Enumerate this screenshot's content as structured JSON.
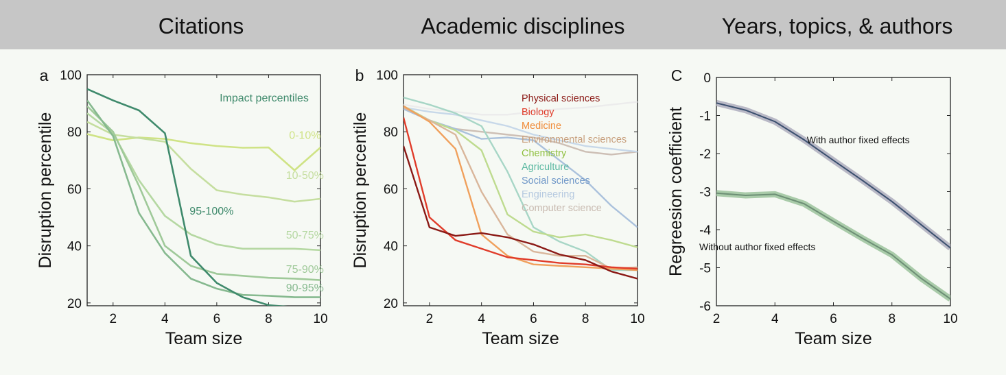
{
  "headers": [
    "Citations",
    "Academic disciplines",
    "Years, topics, & authors"
  ],
  "chart_data": [
    {
      "type": "line",
      "panel_label": "a",
      "xlabel": "Team size",
      "ylabel": "Disruption percentile",
      "xlim": [
        1,
        10
      ],
      "ylim": [
        19,
        100
      ],
      "xticks": [
        2,
        4,
        6,
        8,
        10
      ],
      "yticks": [
        20,
        40,
        60,
        80,
        100
      ],
      "legend_title": "Impact percentiles",
      "legend_title_color": "#3f8a6c",
      "x": [
        1,
        2,
        3,
        4,
        5,
        6,
        7,
        8,
        9,
        10
      ],
      "series": [
        {
          "name": "0-10%",
          "color": "#cfe385",
          "label_pos": [
            9.4,
            77.5
          ],
          "values": [
            79.2,
            77.0,
            78.0,
            77.5,
            76.0,
            75.0,
            74.4,
            74.5,
            66.5,
            74.5
          ]
        },
        {
          "name": "10-50%",
          "color": "#c5de9f",
          "label_pos": [
            9.4,
            63.5
          ],
          "values": [
            83.5,
            79.0,
            77.8,
            76.5,
            67.0,
            59.5,
            58.0,
            57.0,
            55.5,
            56.5
          ]
        },
        {
          "name": "50-75%",
          "color": "#b5d8a2",
          "label_pos": [
            9.4,
            42.5
          ],
          "values": [
            86.5,
            79.5,
            63.0,
            50.5,
            44.0,
            40.5,
            39.0,
            39.0,
            39.0,
            38.5
          ]
        },
        {
          "name": "75-90%",
          "color": "#9fc999",
          "label_pos": [
            9.4,
            30.5
          ],
          "values": [
            89.0,
            80.0,
            61.0,
            40.0,
            33.0,
            30.2,
            29.5,
            28.8,
            28.5,
            28.0
          ]
        },
        {
          "name": "90-95%",
          "color": "#86b98f",
          "label_pos": [
            9.4,
            24.0
          ],
          "values": [
            91.0,
            78.5,
            51.5,
            37.5,
            28.5,
            25.0,
            22.8,
            22.5,
            22.0,
            22.0
          ]
        },
        {
          "name": "95-100%",
          "color": "#3f8a6c",
          "label_pos": [
            5.8,
            51.0
          ],
          "values": [
            95.0,
            91.0,
            87.5,
            79.5,
            36.5,
            27.0,
            22.0,
            19.2,
            18.5,
            18.0
          ]
        }
      ]
    },
    {
      "type": "line",
      "panel_label": "b",
      "xlabel": "Team size",
      "ylabel": "Disruption percentile",
      "xlim": [
        1,
        10
      ],
      "ylim": [
        19,
        100
      ],
      "xticks": [
        2,
        4,
        6,
        8,
        10
      ],
      "yticks": [
        20,
        40,
        60,
        80,
        100
      ],
      "x": [
        1,
        2,
        3,
        4,
        5,
        6,
        7,
        8,
        9,
        10
      ],
      "series": [
        {
          "name": "",
          "color": "#ececec",
          "values": [
            89.5,
            88.0,
            87.0,
            86.0,
            86.0,
            87.0,
            88.0,
            88.5,
            89.5,
            90.5
          ]
        },
        {
          "name": "Computer science",
          "color": "#cdbfb5",
          "values": [
            89.0,
            84.0,
            81.0,
            80.0,
            79.0,
            78.0,
            76.0,
            73.0,
            72.0,
            73.0
          ]
        },
        {
          "name": "Engineering",
          "color": "#c7d8e9",
          "values": [
            88.5,
            87.0,
            86.0,
            84.0,
            82.0,
            79.0,
            77.0,
            75.0,
            74.0,
            73.0
          ]
        },
        {
          "name": "Social sciences",
          "color": "#aac1dc",
          "values": [
            88.0,
            84.0,
            81.0,
            77.5,
            78.0,
            77.0,
            70.0,
            63.0,
            54.0,
            46.5
          ]
        },
        {
          "name": "Agriculture",
          "color": "#a7d6c6",
          "values": [
            92.0,
            89.5,
            86.5,
            82.0,
            66.0,
            46.5,
            41.5,
            38.0,
            31.5,
            31.5
          ]
        },
        {
          "name": "Chemistry",
          "color": "#bedb8f",
          "values": [
            89.0,
            84.0,
            80.5,
            73.5,
            51.0,
            45.0,
            43.0,
            44.0,
            42.0,
            39.5
          ]
        },
        {
          "name": "Environmental sciences",
          "color": "#d9b69b",
          "values": [
            88.5,
            84.0,
            79.0,
            59.0,
            44.0,
            38.0,
            36.5,
            36.5,
            32.0,
            32.5
          ]
        },
        {
          "name": "Medicine",
          "color": "#f0a05c",
          "values": [
            89.0,
            83.5,
            74.0,
            44.0,
            36.5,
            33.5,
            33.0,
            32.5,
            32.0,
            31.5
          ]
        },
        {
          "name": "Biology",
          "color": "#e03c2a",
          "values": [
            85.0,
            50.0,
            42.0,
            39.0,
            36.0,
            35.0,
            34.0,
            33.5,
            32.5,
            32.0
          ]
        },
        {
          "name": "Physical sciences",
          "color": "#8b1a16",
          "values": [
            75.0,
            46.5,
            43.5,
            44.5,
            43.0,
            40.5,
            37.0,
            35.0,
            31.0,
            28.5
          ]
        }
      ],
      "legend_order": [
        "Physical sciences",
        "Biology",
        "Medicine",
        "Environmental sciences",
        "Chemistry",
        "Agriculture",
        "Social sciences",
        "Engineering",
        "Computer science"
      ],
      "legend_colors": [
        "#8b1a16",
        "#e03c2a",
        "#f08c3a",
        "#c8a07e",
        "#8fbf3f",
        "#5cb9a2",
        "#6f97c8",
        "#b5c9e0",
        "#c8bab0"
      ]
    },
    {
      "type": "line",
      "panel_label": "C",
      "xlabel": "Team size",
      "ylabel": "Regreesion coefficient",
      "xlim": [
        2,
        10
      ],
      "ylim": [
        -6,
        0
      ],
      "xticks": [
        2,
        4,
        6,
        8,
        10
      ],
      "yticks": [
        0,
        -1,
        -2,
        -3,
        -4,
        -5,
        -6
      ],
      "x": [
        2,
        3,
        4,
        5,
        6,
        7,
        8,
        9,
        10
      ],
      "series": [
        {
          "name": "With author fixed effects",
          "color": "#3a4f6e",
          "band_color": "#b9b9c6",
          "values": [
            -0.67,
            -0.86,
            -1.16,
            -1.64,
            -2.18,
            -2.71,
            -3.26,
            -3.87,
            -4.48
          ],
          "label_pos": [
            6.85,
            -1.73
          ]
        },
        {
          "name": "Without author fixed effects",
          "color": "#6d8f75",
          "band_color": "#a9cba9",
          "values": [
            -3.04,
            -3.1,
            -3.07,
            -3.32,
            -3.78,
            -4.23,
            -4.66,
            -5.28,
            -5.82
          ],
          "label_pos": [
            3.4,
            -4.54
          ]
        }
      ]
    }
  ]
}
